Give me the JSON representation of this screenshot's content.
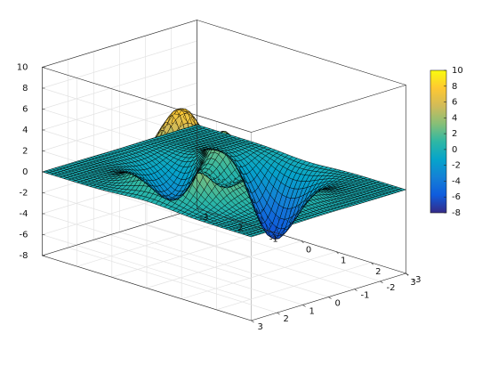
{
  "chart_data": {
    "type": "surface",
    "function": "peaks",
    "title": "",
    "xlabel": "",
    "ylabel": "",
    "zlabel": "",
    "x_range": [
      -3,
      3
    ],
    "y_range": [
      -3,
      3
    ],
    "z_range": [
      -8,
      10
    ],
    "grid_size": 49,
    "x_ticks": [
      "-3",
      "-2",
      "-1",
      "0",
      "1",
      "2",
      "3"
    ],
    "y_ticks": [
      "-3",
      "-2",
      "-1",
      "0",
      "1",
      "2",
      "3"
    ],
    "z_ticks": [
      "-8",
      "-6",
      "-4",
      "-2",
      "0",
      "2",
      "4",
      "6",
      "8",
      "10"
    ],
    "colormap": "parula",
    "colormap_stops": [
      "#352a87",
      "#0f5cdd",
      "#1481d6",
      "#06a4ca",
      "#2eb7a4",
      "#87bf77",
      "#d1bb59",
      "#fec832",
      "#f9fb0e"
    ],
    "edge_color": "#000000",
    "grid": true,
    "colorbar": {
      "position": "right",
      "range": [
        -8,
        10
      ],
      "ticks": [
        "10",
        "8",
        "6",
        "4",
        "2",
        "0",
        "-2",
        "-4",
        "-6",
        "-8"
      ]
    }
  }
}
